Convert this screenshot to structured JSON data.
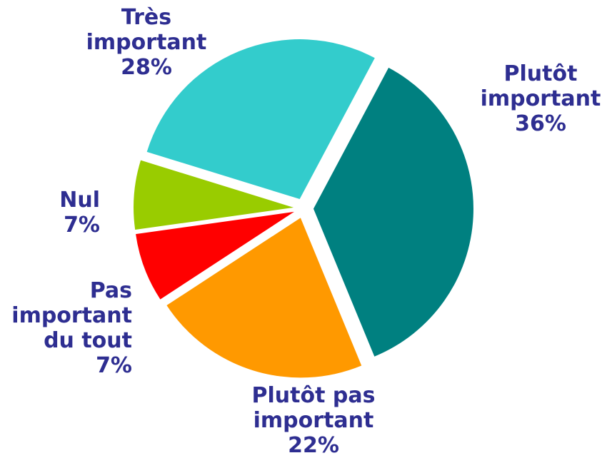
{
  "chart_data": {
    "type": "pie",
    "title": "",
    "legend": "none",
    "label_color": "#2e2e91",
    "slices": [
      {
        "lines": [
          "Plutôt",
          "important",
          "36%"
        ],
        "value": 36,
        "color": "#008080"
      },
      {
        "lines": [
          "Plutôt pas",
          "important",
          "22%"
        ],
        "value": 22,
        "color": "#ff9900"
      },
      {
        "lines": [
          "Pas",
          "important",
          "du tout",
          "7%"
        ],
        "value": 7,
        "color": "#ff0000"
      },
      {
        "lines": [
          "Nul",
          "7%"
        ],
        "value": 7,
        "color": "#99cc00"
      },
      {
        "lines": [
          "Très",
          "important",
          "28%"
        ],
        "value": 28,
        "color": "#33cccc"
      }
    ]
  }
}
